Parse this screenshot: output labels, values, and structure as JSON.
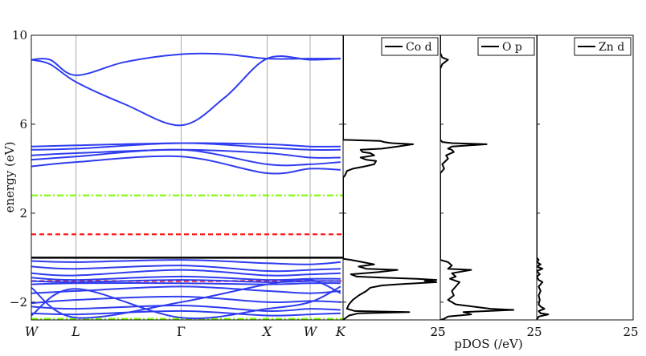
{
  "chart_data": [
    {
      "type": "line",
      "title": "",
      "ylabel": "energy (eV)",
      "ylim": [
        -2.8,
        10
      ],
      "yticks": [
        "-2",
        "2",
        "6",
        "10"
      ],
      "kpoints": [
        "W",
        "L",
        "Γ",
        "X",
        "W",
        "K"
      ],
      "kpoint_x": [
        0,
        0.1433,
        0.4806,
        0.7563,
        0.8943,
        0.992
      ],
      "band_color": "#2f3cf0",
      "fermi_level": 0,
      "hlines": [
        {
          "style": "black-solid",
          "y": 0.0
        },
        {
          "style": "red-dashed",
          "y": 1.05
        },
        {
          "style": "red-dashed",
          "y": -1.05
        },
        {
          "style": "green-dashdot",
          "y": 2.8
        },
        {
          "style": "green-dashdot",
          "y": -2.75
        }
      ],
      "series": [
        {
          "values": [
            [
              0,
              8.9
            ],
            [
              0.06,
              8.9
            ],
            [
              0.1433,
              8.2
            ],
            [
              0.3,
              8.8
            ],
            [
              0.4806,
              9.15
            ],
            [
              0.62,
              9.15
            ],
            [
              0.7563,
              8.95
            ],
            [
              0.8943,
              8.95
            ],
            [
              0.992,
              8.95
            ]
          ]
        },
        {
          "values": [
            [
              0,
              8.9
            ],
            [
              0.06,
              8.7
            ],
            [
              0.1433,
              7.9
            ],
            [
              0.3,
              6.9
            ],
            [
              0.4806,
              5.95
            ],
            [
              0.62,
              7.2
            ],
            [
              0.7563,
              8.95
            ],
            [
              0.8943,
              8.9
            ],
            [
              0.992,
              8.95
            ]
          ]
        },
        {
          "values": [
            [
              0,
              5.0
            ],
            [
              0.1433,
              5.05
            ],
            [
              0.4806,
              5.15
            ],
            [
              0.7563,
              5.1
            ],
            [
              0.8943,
              5.0
            ],
            [
              0.992,
              5.0
            ]
          ]
        },
        {
          "values": [
            [
              0,
              4.85
            ],
            [
              0.1433,
              4.9
            ],
            [
              0.4806,
              5.15
            ],
            [
              0.7563,
              4.95
            ],
            [
              0.8943,
              4.85
            ],
            [
              0.992,
              4.85
            ]
          ]
        },
        {
          "values": [
            [
              0,
              4.6
            ],
            [
              0.1433,
              4.7
            ],
            [
              0.4806,
              4.85
            ],
            [
              0.7563,
              4.7
            ],
            [
              0.8943,
              4.5
            ],
            [
              0.992,
              4.5
            ]
          ]
        },
        {
          "values": [
            [
              0,
              4.4
            ],
            [
              0.1433,
              4.55
            ],
            [
              0.4806,
              4.85
            ],
            [
              0.7563,
              4.2
            ],
            [
              0.8943,
              4.2
            ],
            [
              0.992,
              4.3
            ]
          ]
        },
        {
          "values": [
            [
              0,
              4.1
            ],
            [
              0.1433,
              4.3
            ],
            [
              0.4806,
              4.55
            ],
            [
              0.7563,
              3.8
            ],
            [
              0.8943,
              4.0
            ],
            [
              0.992,
              3.95
            ]
          ]
        },
        {
          "values": [
            [
              0,
              -0.15
            ],
            [
              0.1433,
              -0.2
            ],
            [
              0.4806,
              -0.1
            ],
            [
              0.7563,
              -0.25
            ],
            [
              0.8943,
              -0.3
            ],
            [
              0.992,
              -0.2
            ]
          ]
        },
        {
          "values": [
            [
              0,
              -0.4
            ],
            [
              0.1433,
              -0.5
            ],
            [
              0.4806,
              -0.35
            ],
            [
              0.7563,
              -0.6
            ],
            [
              0.8943,
              -0.55
            ],
            [
              0.992,
              -0.5
            ]
          ]
        },
        {
          "values": [
            [
              0,
              -0.7
            ],
            [
              0.1433,
              -0.8
            ],
            [
              0.4806,
              -0.55
            ],
            [
              0.7563,
              -0.8
            ],
            [
              0.8943,
              -0.75
            ],
            [
              0.992,
              -0.7
            ]
          ]
        },
        {
          "values": [
            [
              0,
              -0.9
            ],
            [
              0.1433,
              -1.0
            ],
            [
              0.4806,
              -0.85
            ],
            [
              0.7563,
              -1.0
            ],
            [
              0.8943,
              -0.95
            ],
            [
              0.992,
              -0.95
            ]
          ]
        },
        {
          "values": [
            [
              0,
              -1.05
            ],
            [
              0.1433,
              -1.1
            ],
            [
              0.4806,
              -1.0
            ],
            [
              0.7563,
              -1.1
            ],
            [
              0.8943,
              -1.05
            ],
            [
              0.992,
              -1.05
            ]
          ]
        },
        {
          "values": [
            [
              0,
              -1.2
            ],
            [
              0.1433,
              -1.15
            ],
            [
              0.4806,
              -1.15
            ],
            [
              0.7563,
              -1.2
            ],
            [
              0.8943,
              -1.15
            ],
            [
              0.992,
              -1.15
            ]
          ]
        },
        {
          "values": [
            [
              0,
              -1.6
            ],
            [
              0.1433,
              -1.5
            ],
            [
              0.4806,
              -1.3
            ],
            [
              0.7563,
              -1.5
            ],
            [
              0.8943,
              -1.6
            ],
            [
              0.992,
              -1.5
            ]
          ]
        },
        {
          "values": [
            [
              0,
              -2.05
            ],
            [
              0.1433,
              -1.9
            ],
            [
              0.4806,
              -1.75
            ],
            [
              0.7563,
              -2.0
            ],
            [
              0.8943,
              -1.95
            ],
            [
              0.992,
              -2.0
            ]
          ]
        },
        {
          "values": [
            [
              0,
              -2.2
            ],
            [
              0.1433,
              -2.3
            ],
            [
              0.4806,
              -2.15
            ],
            [
              0.7563,
              -2.4
            ],
            [
              0.8943,
              -2.3
            ],
            [
              0.992,
              -2.35
            ]
          ]
        },
        {
          "values": [
            [
              0,
              -2.5
            ],
            [
              0.1433,
              -2.55
            ],
            [
              0.4806,
              -2.4
            ],
            [
              0.7563,
              -2.6
            ],
            [
              0.8943,
              -2.55
            ],
            [
              0.992,
              -2.5
            ]
          ]
        },
        {
          "values": [
            [
              0,
              -1.35
            ],
            [
              0.1433,
              -2.7
            ],
            [
              0.4806,
              -2.0
            ],
            [
              0.7563,
              -1.2
            ],
            [
              0.8943,
              -1.0
            ],
            [
              0.992,
              -1.6
            ]
          ]
        },
        {
          "values": [
            [
              0,
              -2.6
            ],
            [
              0.1433,
              -1.4
            ],
            [
              0.4806,
              -2.7
            ],
            [
              0.7563,
              -2.3
            ],
            [
              0.8943,
              -2.0
            ],
            [
              0.992,
              -1.3
            ]
          ]
        }
      ]
    },
    {
      "type": "line",
      "xlabel": "pDOS (/eV)",
      "xlim": [
        0,
        25
      ],
      "xtick_labels": [
        "25",
        "25",
        "25",
        "25"
      ],
      "panels": [
        {
          "name": "Co d",
          "points": [
            [
              0,
              10
            ],
            [
              0,
              5.3
            ],
            [
              9.5,
              5.25
            ],
            [
              10.5,
              5.2
            ],
            [
              12.5,
              5.15
            ],
            [
              18,
              5.1
            ],
            [
              14,
              5.0
            ],
            [
              10,
              4.9
            ],
            [
              4.5,
              4.85
            ],
            [
              5,
              4.75
            ],
            [
              7,
              4.7
            ],
            [
              8,
              4.6
            ],
            [
              4.5,
              4.5
            ],
            [
              6,
              4.4
            ],
            [
              8.5,
              4.35
            ],
            [
              8,
              4.2
            ],
            [
              5.5,
              4.1
            ],
            [
              2.5,
              4.0
            ],
            [
              1,
              3.9
            ],
            [
              0.5,
              3.7
            ],
            [
              0,
              3.6
            ],
            [
              0,
              0
            ],
            [
              0,
              -0.05
            ],
            [
              2,
              -0.1
            ],
            [
              5,
              -0.2
            ],
            [
              8,
              -0.3
            ],
            [
              4,
              -0.4
            ],
            [
              6,
              -0.5
            ],
            [
              14,
              -0.55
            ],
            [
              9,
              -0.65
            ],
            [
              2,
              -0.75
            ],
            [
              3.5,
              -0.85
            ],
            [
              10,
              -0.9
            ],
            [
              19,
              -0.95
            ],
            [
              24,
              -1.0
            ],
            [
              21,
              -1.05
            ],
            [
              24,
              -1.1
            ],
            [
              19,
              -1.15
            ],
            [
              14,
              -1.2
            ],
            [
              10,
              -1.25
            ],
            [
              7,
              -1.35
            ],
            [
              6,
              -1.5
            ],
            [
              4,
              -1.7
            ],
            [
              2.5,
              -1.9
            ],
            [
              1.5,
              -2.1
            ],
            [
              1,
              -2.3
            ],
            [
              3,
              -2.4
            ],
            [
              17,
              -2.45
            ],
            [
              4,
              -2.5
            ],
            [
              1.5,
              -2.6
            ],
            [
              0,
              -2.8
            ]
          ]
        },
        {
          "name": "O p",
          "points": [
            [
              0,
              10
            ],
            [
              0,
              9.2
            ],
            [
              0.5,
              9.0
            ],
            [
              2,
              8.9
            ],
            [
              0.5,
              8.7
            ],
            [
              0,
              8.5
            ],
            [
              0,
              5.3
            ],
            [
              0.5,
              5.2
            ],
            [
              3,
              5.15
            ],
            [
              12,
              5.1
            ],
            [
              3,
              5.0
            ],
            [
              2,
              4.9
            ],
            [
              3,
              4.85
            ],
            [
              3.5,
              4.75
            ],
            [
              1.5,
              4.6
            ],
            [
              2,
              4.45
            ],
            [
              0.5,
              4.2
            ],
            [
              1,
              4.0
            ],
            [
              0,
              3.8
            ],
            [
              0,
              0
            ],
            [
              0,
              -0.1
            ],
            [
              2,
              -0.2
            ],
            [
              3,
              -0.35
            ],
            [
              2,
              -0.5
            ],
            [
              8,
              -0.55
            ],
            [
              3,
              -0.7
            ],
            [
              4,
              -0.85
            ],
            [
              2.5,
              -0.95
            ],
            [
              5,
              -1.1
            ],
            [
              4,
              -1.3
            ],
            [
              3,
              -1.5
            ],
            [
              3.5,
              -1.7
            ],
            [
              2,
              -1.9
            ],
            [
              4,
              -2.1
            ],
            [
              13,
              -2.3
            ],
            [
              19,
              -2.35
            ],
            [
              6,
              -2.45
            ],
            [
              8,
              -2.55
            ],
            [
              2,
              -2.65
            ],
            [
              1,
              -2.75
            ],
            [
              0,
              -2.8
            ]
          ]
        },
        {
          "name": "Zn d",
          "points": [
            [
              0,
              10
            ],
            [
              0,
              0
            ],
            [
              0.5,
              -0.1
            ],
            [
              0,
              -0.2
            ],
            [
              1,
              -0.3
            ],
            [
              0,
              -0.4
            ],
            [
              1.5,
              -0.5
            ],
            [
              0,
              -0.6
            ],
            [
              0.8,
              -0.75
            ],
            [
              0,
              -0.85
            ],
            [
              0.5,
              -1.0
            ],
            [
              1.5,
              -1.1
            ],
            [
              0.5,
              -1.3
            ],
            [
              1,
              -1.5
            ],
            [
              0.5,
              -1.7
            ],
            [
              0.8,
              -1.9
            ],
            [
              0.5,
              -2.1
            ],
            [
              1,
              -2.2
            ],
            [
              2,
              -2.3
            ],
            [
              0.5,
              -2.4
            ],
            [
              1,
              -2.5
            ],
            [
              3,
              -2.55
            ],
            [
              0.5,
              -2.65
            ],
            [
              0,
              -2.8
            ]
          ]
        }
      ]
    }
  ]
}
